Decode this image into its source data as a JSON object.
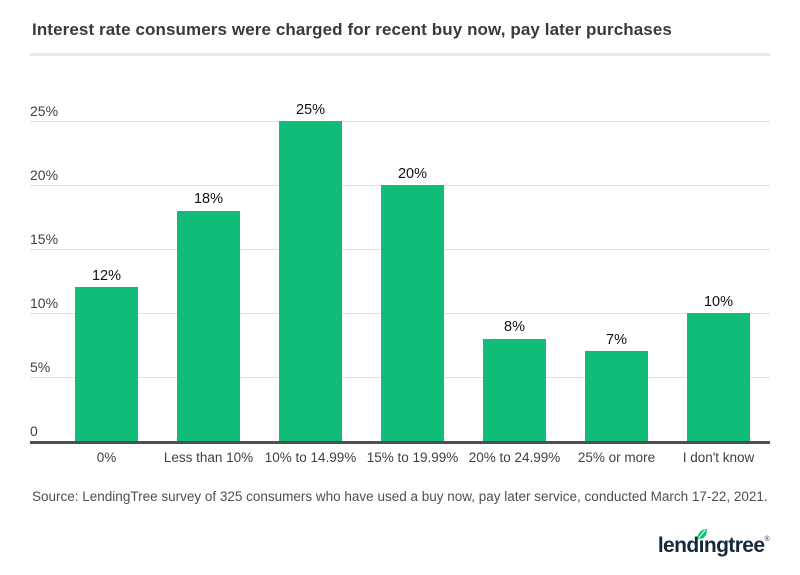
{
  "title": "Interest rate consumers were charged for recent buy now, pay later purchases",
  "chart_data": {
    "type": "bar",
    "title": "Interest rate consumers were charged for recent buy now, pay later purchases",
    "categories": [
      "0%",
      "Less than 10%",
      "10% to 14.99%",
      "15% to 19.99%",
      "20% to 24.99%",
      "25% or more",
      "I don't know"
    ],
    "values": [
      12,
      18,
      25,
      20,
      8,
      7,
      10
    ],
    "value_labels": [
      "12%",
      "18%",
      "25%",
      "20%",
      "8%",
      "7%",
      "10%"
    ],
    "y_ticks": [
      {
        "value": 0,
        "label": "0"
      },
      {
        "value": 5,
        "label": "5%"
      },
      {
        "value": 10,
        "label": "10%"
      },
      {
        "value": 15,
        "label": "15%"
      },
      {
        "value": 20,
        "label": "20%"
      },
      {
        "value": 25,
        "label": "25%"
      }
    ],
    "ylim": [
      0,
      25
    ],
    "grid": true,
    "legend": "none",
    "bar_color": "#10BC77",
    "gridline_color": "#E1E1E1",
    "axis_line_color": "#4E4F51"
  },
  "source": "Source: LendingTree survey of 325 consumers who have used a buy now, pay later service, conducted March 17-22, 2021.",
  "footer": {
    "logo_text": "lendingtree",
    "registered": "®",
    "logo_color": "#15283C",
    "leaf_color": "#0BBE6E"
  }
}
